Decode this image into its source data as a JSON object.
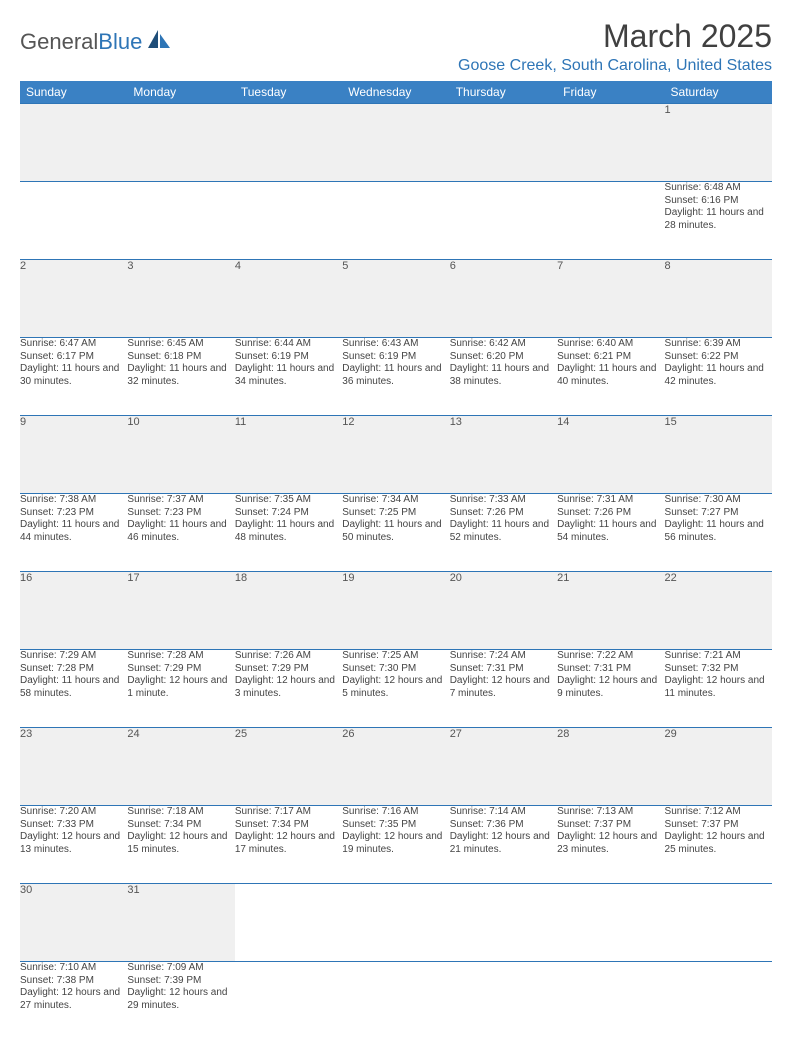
{
  "brand": {
    "part1": "General",
    "part2": "Blue"
  },
  "title": "March 2025",
  "location": "Goose Creek, South Carolina, United States",
  "colors": {
    "header_bg": "#3a81c4",
    "header_text": "#ffffff",
    "accent": "#2e75b6",
    "daynum_bg": "#f0f0f0",
    "body_text": "#444444",
    "border": "#2e75b6"
  },
  "typography": {
    "title_fontsize": 32,
    "location_fontsize": 16,
    "header_fontsize": 12,
    "daynum_fontsize": 11,
    "cell_fontsize": 10
  },
  "weekdays": [
    "Sunday",
    "Monday",
    "Tuesday",
    "Wednesday",
    "Thursday",
    "Friday",
    "Saturday"
  ],
  "weeks": [
    [
      null,
      null,
      null,
      null,
      null,
      null,
      {
        "n": "1",
        "sunrise": "Sunrise: 6:48 AM",
        "sunset": "Sunset: 6:16 PM",
        "daylight": "Daylight: 11 hours and 28 minutes."
      }
    ],
    [
      {
        "n": "2",
        "sunrise": "Sunrise: 6:47 AM",
        "sunset": "Sunset: 6:17 PM",
        "daylight": "Daylight: 11 hours and 30 minutes."
      },
      {
        "n": "3",
        "sunrise": "Sunrise: 6:45 AM",
        "sunset": "Sunset: 6:18 PM",
        "daylight": "Daylight: 11 hours and 32 minutes."
      },
      {
        "n": "4",
        "sunrise": "Sunrise: 6:44 AM",
        "sunset": "Sunset: 6:19 PM",
        "daylight": "Daylight: 11 hours and 34 minutes."
      },
      {
        "n": "5",
        "sunrise": "Sunrise: 6:43 AM",
        "sunset": "Sunset: 6:19 PM",
        "daylight": "Daylight: 11 hours and 36 minutes."
      },
      {
        "n": "6",
        "sunrise": "Sunrise: 6:42 AM",
        "sunset": "Sunset: 6:20 PM",
        "daylight": "Daylight: 11 hours and 38 minutes."
      },
      {
        "n": "7",
        "sunrise": "Sunrise: 6:40 AM",
        "sunset": "Sunset: 6:21 PM",
        "daylight": "Daylight: 11 hours and 40 minutes."
      },
      {
        "n": "8",
        "sunrise": "Sunrise: 6:39 AM",
        "sunset": "Sunset: 6:22 PM",
        "daylight": "Daylight: 11 hours and 42 minutes."
      }
    ],
    [
      {
        "n": "9",
        "sunrise": "Sunrise: 7:38 AM",
        "sunset": "Sunset: 7:23 PM",
        "daylight": "Daylight: 11 hours and 44 minutes."
      },
      {
        "n": "10",
        "sunrise": "Sunrise: 7:37 AM",
        "sunset": "Sunset: 7:23 PM",
        "daylight": "Daylight: 11 hours and 46 minutes."
      },
      {
        "n": "11",
        "sunrise": "Sunrise: 7:35 AM",
        "sunset": "Sunset: 7:24 PM",
        "daylight": "Daylight: 11 hours and 48 minutes."
      },
      {
        "n": "12",
        "sunrise": "Sunrise: 7:34 AM",
        "sunset": "Sunset: 7:25 PM",
        "daylight": "Daylight: 11 hours and 50 minutes."
      },
      {
        "n": "13",
        "sunrise": "Sunrise: 7:33 AM",
        "sunset": "Sunset: 7:26 PM",
        "daylight": "Daylight: 11 hours and 52 minutes."
      },
      {
        "n": "14",
        "sunrise": "Sunrise: 7:31 AM",
        "sunset": "Sunset: 7:26 PM",
        "daylight": "Daylight: 11 hours and 54 minutes."
      },
      {
        "n": "15",
        "sunrise": "Sunrise: 7:30 AM",
        "sunset": "Sunset: 7:27 PM",
        "daylight": "Daylight: 11 hours and 56 minutes."
      }
    ],
    [
      {
        "n": "16",
        "sunrise": "Sunrise: 7:29 AM",
        "sunset": "Sunset: 7:28 PM",
        "daylight": "Daylight: 11 hours and 58 minutes."
      },
      {
        "n": "17",
        "sunrise": "Sunrise: 7:28 AM",
        "sunset": "Sunset: 7:29 PM",
        "daylight": "Daylight: 12 hours and 1 minute."
      },
      {
        "n": "18",
        "sunrise": "Sunrise: 7:26 AM",
        "sunset": "Sunset: 7:29 PM",
        "daylight": "Daylight: 12 hours and 3 minutes."
      },
      {
        "n": "19",
        "sunrise": "Sunrise: 7:25 AM",
        "sunset": "Sunset: 7:30 PM",
        "daylight": "Daylight: 12 hours and 5 minutes."
      },
      {
        "n": "20",
        "sunrise": "Sunrise: 7:24 AM",
        "sunset": "Sunset: 7:31 PM",
        "daylight": "Daylight: 12 hours and 7 minutes."
      },
      {
        "n": "21",
        "sunrise": "Sunrise: 7:22 AM",
        "sunset": "Sunset: 7:31 PM",
        "daylight": "Daylight: 12 hours and 9 minutes."
      },
      {
        "n": "22",
        "sunrise": "Sunrise: 7:21 AM",
        "sunset": "Sunset: 7:32 PM",
        "daylight": "Daylight: 12 hours and 11 minutes."
      }
    ],
    [
      {
        "n": "23",
        "sunrise": "Sunrise: 7:20 AM",
        "sunset": "Sunset: 7:33 PM",
        "daylight": "Daylight: 12 hours and 13 minutes."
      },
      {
        "n": "24",
        "sunrise": "Sunrise: 7:18 AM",
        "sunset": "Sunset: 7:34 PM",
        "daylight": "Daylight: 12 hours and 15 minutes."
      },
      {
        "n": "25",
        "sunrise": "Sunrise: 7:17 AM",
        "sunset": "Sunset: 7:34 PM",
        "daylight": "Daylight: 12 hours and 17 minutes."
      },
      {
        "n": "26",
        "sunrise": "Sunrise: 7:16 AM",
        "sunset": "Sunset: 7:35 PM",
        "daylight": "Daylight: 12 hours and 19 minutes."
      },
      {
        "n": "27",
        "sunrise": "Sunrise: 7:14 AM",
        "sunset": "Sunset: 7:36 PM",
        "daylight": "Daylight: 12 hours and 21 minutes."
      },
      {
        "n": "28",
        "sunrise": "Sunrise: 7:13 AM",
        "sunset": "Sunset: 7:37 PM",
        "daylight": "Daylight: 12 hours and 23 minutes."
      },
      {
        "n": "29",
        "sunrise": "Sunrise: 7:12 AM",
        "sunset": "Sunset: 7:37 PM",
        "daylight": "Daylight: 12 hours and 25 minutes."
      }
    ],
    [
      {
        "n": "30",
        "sunrise": "Sunrise: 7:10 AM",
        "sunset": "Sunset: 7:38 PM",
        "daylight": "Daylight: 12 hours and 27 minutes."
      },
      {
        "n": "31",
        "sunrise": "Sunrise: 7:09 AM",
        "sunset": "Sunset: 7:39 PM",
        "daylight": "Daylight: 12 hours and 29 minutes."
      },
      null,
      null,
      null,
      null,
      null
    ]
  ]
}
